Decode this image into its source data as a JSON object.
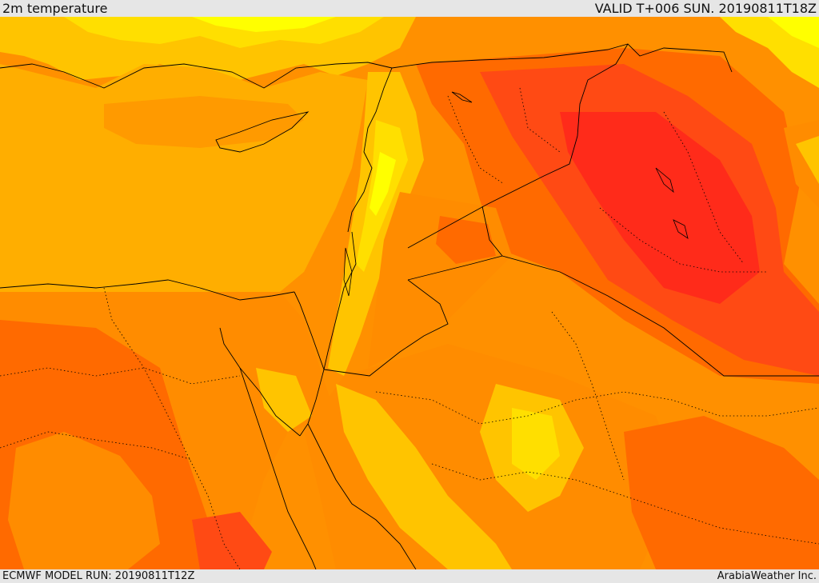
{
  "header": {
    "title": "2m temperature",
    "valid_time": "VALID T+006 SUN. 20190811T18Z"
  },
  "footer": {
    "model_run": "ECMWF MODEL RUN: 20190811T12Z",
    "credit": "ArabiaWeather Inc."
  },
  "map": {
    "variable": "2m temperature",
    "palette": {
      "yellow": "#ffff00",
      "light_yellow": "#ffdf00",
      "amber": "#ffc400",
      "orange_light": "#ffad00",
      "orange": "#ff8c00",
      "dark_orange": "#ff6a00",
      "red_orange": "#ff4a14",
      "red": "#ff2b1a"
    },
    "border_color": "#000000"
  }
}
